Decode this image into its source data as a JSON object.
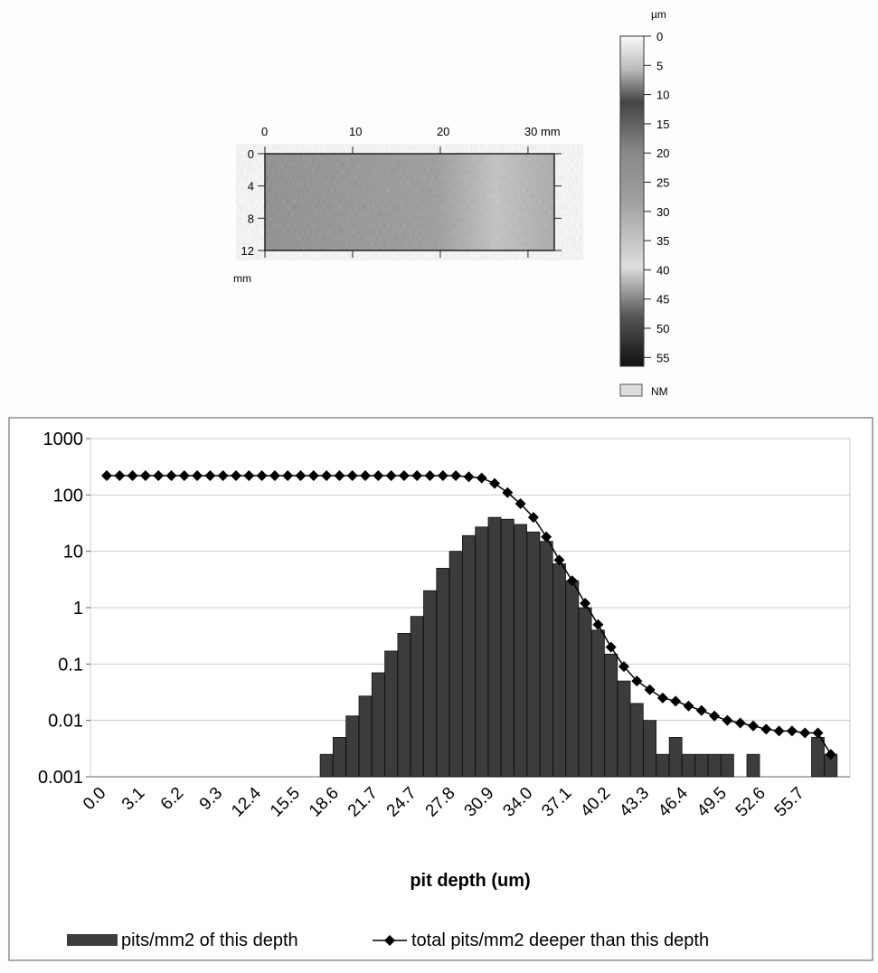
{
  "chart_data": [
    {
      "type": "surface-map",
      "xticks": [
        0,
        10,
        20,
        {
          "value": 30,
          "label": "30 mm"
        }
      ],
      "xlim": [
        0,
        33
      ],
      "yticks": [
        0,
        4,
        8,
        12
      ],
      "ylim": [
        0,
        12
      ],
      "ylabel": "mm",
      "colorbar_label": "µm",
      "colorbar_ticks": [
        0,
        5,
        10,
        15,
        20,
        25,
        30,
        35,
        40,
        45,
        50,
        55
      ],
      "colorbar_lim": [
        0,
        56.5
      ],
      "legend": "NM"
    },
    {
      "type": "bar-line",
      "log_scale": true,
      "grid": true,
      "xlabel": "pit depth (um)",
      "categories": [
        "0.0",
        null,
        null,
        "3.1",
        null,
        null,
        "6.2",
        null,
        null,
        "9.3",
        null,
        null,
        "12.4",
        null,
        null,
        "15.5",
        null,
        null,
        "18.6",
        null,
        null,
        "21.7",
        null,
        null,
        "24.7",
        null,
        null,
        "27.8",
        null,
        null,
        "30.9",
        null,
        null,
        "34.0",
        null,
        null,
        "37.1",
        null,
        null,
        "40.2",
        null,
        null,
        "43.3",
        null,
        null,
        "46.4",
        null,
        null,
        "49.5",
        null,
        null,
        "52.6",
        null,
        null,
        "55.7",
        null,
        null
      ],
      "ylim": [
        0.001,
        1000
      ],
      "yticks": [
        0.001,
        0.01,
        0.1,
        1,
        10,
        100,
        1000
      ],
      "series": [
        {
          "name": "pits/mm2 of this depth",
          "color": "#3c3c3c",
          "values": [
            null,
            null,
            null,
            null,
            null,
            null,
            null,
            null,
            null,
            null,
            null,
            null,
            null,
            null,
            null,
            null,
            null,
            0.0025,
            0.005,
            0.012,
            0.027,
            0.07,
            0.17,
            0.35,
            0.7,
            2,
            5,
            10,
            19,
            27,
            40,
            37,
            30,
            22,
            15,
            6,
            3,
            1,
            0.4,
            0.15,
            0.05,
            0.02,
            0.01,
            0.0025,
            0.005,
            0.0025,
            0.0025,
            0.0025,
            0.0025,
            null,
            0.0025,
            null,
            null,
            null,
            null,
            0.005,
            0.0025
          ]
        },
        {
          "name": "total pits/mm2 deeper than this depth",
          "color": "#000000",
          "values": [
            220,
            220,
            220,
            220,
            220,
            220,
            220,
            220,
            220,
            220,
            220,
            220,
            220,
            220,
            220,
            220,
            220,
            220,
            220,
            220,
            220,
            220,
            220,
            220,
            220,
            220,
            220,
            220,
            210,
            200,
            160,
            110,
            70,
            40,
            18,
            7,
            3,
            1.2,
            0.5,
            0.2,
            0.09,
            0.05,
            0.035,
            0.025,
            0.022,
            0.018,
            0.015,
            0.012,
            0.01,
            0.009,
            0.008,
            0.007,
            0.0065,
            0.0065,
            0.006,
            0.006,
            0.0025
          ]
        }
      ]
    }
  ]
}
